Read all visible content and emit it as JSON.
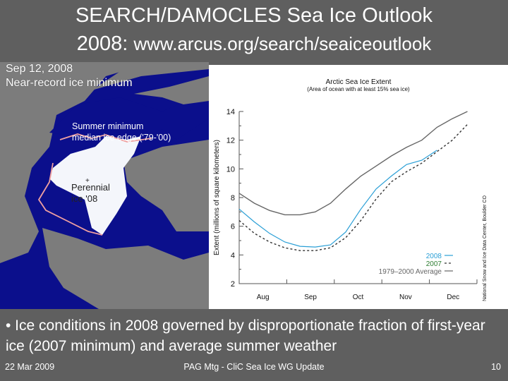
{
  "slide": {
    "title_line1": "SEARCH/DAMOCLES Sea Ice Outlook",
    "title_line2_prefix": "2008: ",
    "title_line2_url": "www.arcus.org/search/seaiceoutlook",
    "bullet": "• Ice conditions in 2008 governed by disproportionate fraction of first-year ice (2007 minimum) and average summer weather",
    "footer": {
      "date": "22 Mar 2009",
      "center": "PAG Mtg - CliC Sea Ice WG Update",
      "page": "10"
    }
  },
  "map": {
    "date_label": "Sep 12, 2008",
    "subtitle": "Near-record ice minimum",
    "edge_annotation_line1": "Summer minimum",
    "edge_annotation_line2": "median ice edge ('79-'00)",
    "perennial_line1": "Perennial",
    "perennial_line2": "ice '08",
    "colors": {
      "land": "#7c7c7c",
      "ocean": "#0b0f8c",
      "ice": "#f4f6fb",
      "median_edge": "#f0a0a0"
    }
  },
  "chart_data": {
    "type": "line",
    "title": "Arctic Sea Ice Extent",
    "subtitle": "(Area of ocean with at least 15% sea ice)",
    "xlabel": "",
    "ylabel": "Extent (millions of square kilometers)",
    "ylim": [
      2,
      14
    ],
    "yticks": [
      2,
      4,
      6,
      8,
      10,
      12,
      14
    ],
    "categories": [
      "Aug",
      "Sep",
      "Oct",
      "Nov",
      "Dec"
    ],
    "credit": "National Snow and Ice Data Center, Boulder CO",
    "legend_position": "lower right",
    "grid": false,
    "x_days": [
      0,
      10,
      20,
      30,
      40,
      50,
      60,
      70,
      80,
      90,
      100,
      110,
      120,
      130,
      140,
      150
    ],
    "series": [
      {
        "name": "2008",
        "style": "solid",
        "color": "#2a9fd6",
        "values": [
          7.2,
          6.3,
          5.5,
          4.9,
          4.6,
          4.55,
          4.7,
          5.6,
          7.2,
          8.6,
          9.5,
          10.3,
          10.6,
          11.3,
          null,
          null
        ]
      },
      {
        "name": "2007",
        "style": "dashed",
        "color": "#333333",
        "values": [
          6.4,
          5.5,
          4.9,
          4.5,
          4.3,
          4.3,
          4.5,
          5.2,
          6.4,
          7.9,
          9.1,
          9.8,
          10.4,
          11.2,
          12.0,
          13.1
        ]
      },
      {
        "name": "1979–2000 Average",
        "style": "solid",
        "color": "#666666",
        "values": [
          8.3,
          7.6,
          7.1,
          6.8,
          6.8,
          7.0,
          7.6,
          8.6,
          9.5,
          10.2,
          10.9,
          11.5,
          12.0,
          12.9,
          13.5,
          14.0
        ]
      }
    ]
  }
}
